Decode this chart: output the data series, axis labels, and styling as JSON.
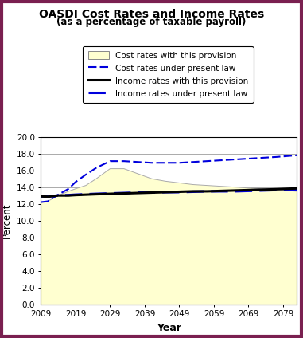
{
  "title": "OASDI Cost Rates and Income Rates",
  "subtitle": "(as a percentage of taxable payroll)",
  "xlabel": "Year",
  "ylabel": "Percent",
  "years": [
    2009,
    2011,
    2014,
    2017,
    2019,
    2022,
    2025,
    2029,
    2033,
    2037,
    2041,
    2045,
    2049,
    2053,
    2057,
    2061,
    2065,
    2069,
    2073,
    2077,
    2083
  ],
  "cost_provision": [
    12.2,
    12.3,
    13.0,
    13.5,
    13.8,
    14.2,
    15.0,
    16.2,
    16.2,
    15.6,
    15.0,
    14.7,
    14.5,
    14.3,
    14.2,
    14.1,
    14.0,
    13.9,
    13.8,
    13.7,
    13.5
  ],
  "cost_present_law": [
    12.2,
    12.3,
    13.1,
    13.8,
    14.6,
    15.5,
    16.3,
    17.1,
    17.1,
    17.0,
    16.9,
    16.9,
    16.9,
    17.0,
    17.1,
    17.2,
    17.3,
    17.4,
    17.5,
    17.6,
    17.8
  ],
  "income_provision": [
    12.9,
    12.85,
    13.0,
    13.0,
    13.05,
    13.1,
    13.15,
    13.2,
    13.25,
    13.3,
    13.35,
    13.4,
    13.45,
    13.5,
    13.5,
    13.55,
    13.6,
    13.65,
    13.7,
    13.75,
    13.85
  ],
  "income_present_law": [
    12.9,
    12.9,
    13.0,
    13.05,
    13.1,
    13.15,
    13.2,
    13.25,
    13.3,
    13.35,
    13.35,
    13.4,
    13.4,
    13.45,
    13.5,
    13.5,
    13.5,
    13.55,
    13.6,
    13.65,
    13.7
  ],
  "ylim": [
    0.0,
    20.0
  ],
  "yticks": [
    0.0,
    2.0,
    4.0,
    6.0,
    8.0,
    10.0,
    12.0,
    14.0,
    16.0,
    18.0,
    20.0
  ],
  "xticks": [
    2009,
    2019,
    2029,
    2039,
    2049,
    2059,
    2069,
    2079
  ],
  "fill_color": "#ffffd0",
  "cost_provision_edge_color": "#aaaaaa",
  "cost_present_law_color": "#0000dd",
  "income_provision_color": "#000000",
  "income_present_law_color": "#0000dd",
  "bg_color": "#ffffff",
  "border_color": "#7a2050"
}
